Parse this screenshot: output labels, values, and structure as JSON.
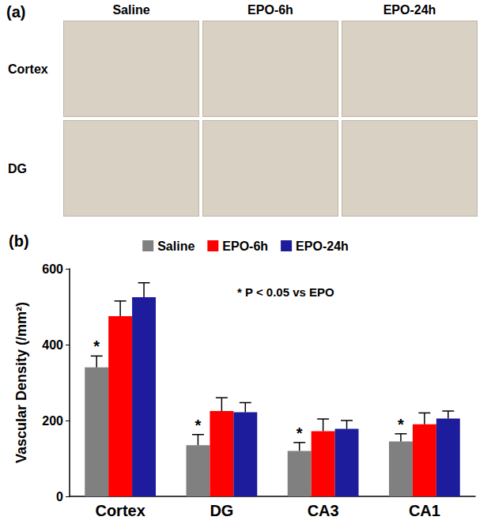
{
  "panel_a": {
    "label": "(a)",
    "columns": [
      "Saline",
      "EPO-6h",
      "EPO-24h"
    ],
    "rows": [
      "Cortex",
      "DG"
    ]
  },
  "chart_data": {
    "type": "bar",
    "title": "(b)",
    "y_label": "Vascular Density (/mm²)",
    "annotation": "* P < 0.05 vs EPO",
    "categories": [
      "Cortex",
      "DG",
      "CA3",
      "CA1"
    ],
    "series": [
      {
        "name": "Saline",
        "color": "#808080",
        "values": [
          340,
          135,
          120,
          145
        ],
        "errors": [
          30,
          28,
          22,
          20
        ],
        "significance": [
          "*",
          "*",
          "*",
          "*"
        ]
      },
      {
        "name": "EPO-6h",
        "color": "#ff0000",
        "values": [
          475,
          225,
          172,
          190
        ],
        "errors": [
          40,
          35,
          32,
          30
        ]
      },
      {
        "name": "EPO-24h",
        "color": "#1c1c9c",
        "values": [
          525,
          222,
          178,
          205
        ],
        "errors": [
          38,
          25,
          22,
          20
        ]
      }
    ],
    "ylim": [
      0,
      600
    ],
    "yticks": [
      0,
      200,
      400,
      600
    ],
    "grid": false,
    "legend": "top"
  }
}
